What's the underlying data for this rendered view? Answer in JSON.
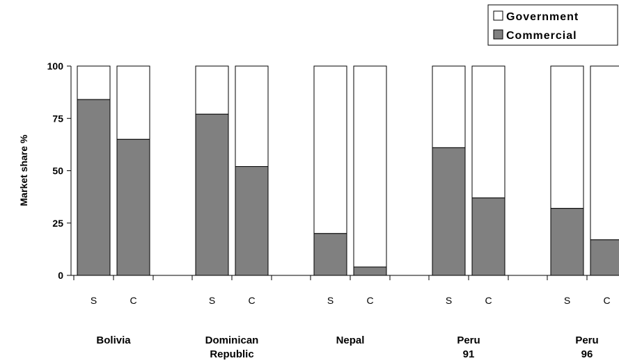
{
  "chart_data": {
    "type": "bar",
    "stacked": true,
    "title": "",
    "ylabel": "Market share %",
    "xlabel": "",
    "ylim": [
      0,
      100
    ],
    "yticks": [
      "0",
      "25",
      "50",
      "75",
      "100"
    ],
    "legend": {
      "placement": "top-right",
      "entries": [
        {
          "name": "Government",
          "color": "#ffffff"
        },
        {
          "name": "Commercial",
          "color": "#808080"
        }
      ]
    },
    "groups": [
      {
        "label_lines": [
          "Bolivia"
        ],
        "bars": [
          {
            "category": "S",
            "commercial": 84
          },
          {
            "category": "C",
            "commercial": 65
          }
        ]
      },
      {
        "label_lines": [
          "Dominican",
          "Republic"
        ],
        "bars": [
          {
            "category": "S",
            "commercial": 77
          },
          {
            "category": "C",
            "commercial": 52
          }
        ]
      },
      {
        "label_lines": [
          "Nepal"
        ],
        "bars": [
          {
            "category": "S",
            "commercial": 20
          },
          {
            "category": "C",
            "commercial": 4
          }
        ]
      },
      {
        "label_lines": [
          "Peru",
          "91"
        ],
        "bars": [
          {
            "category": "S",
            "commercial": 61
          },
          {
            "category": "C",
            "commercial": 37
          }
        ]
      },
      {
        "label_lines": [
          "Peru",
          "96"
        ],
        "bars": [
          {
            "category": "S",
            "commercial": 32
          },
          {
            "category": "C",
            "commercial": 17
          }
        ]
      }
    ],
    "series": [
      {
        "name": "Commercial",
        "values": [
          84,
          65,
          77,
          52,
          20,
          4,
          61,
          37,
          32,
          17
        ]
      },
      {
        "name": "Government",
        "values": [
          16,
          35,
          23,
          48,
          80,
          96,
          39,
          63,
          68,
          83
        ]
      }
    ],
    "colors": {
      "commercial": "#808080",
      "government": "#ffffff",
      "stroke": "#000000"
    }
  }
}
